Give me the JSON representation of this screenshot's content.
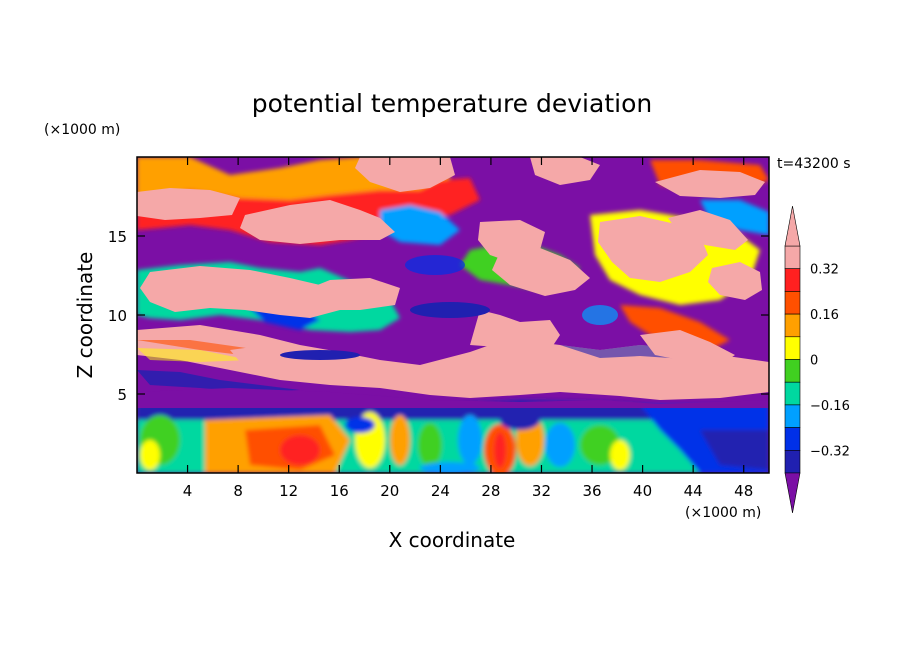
{
  "chart_data": {
    "type": "heatmap",
    "title": "potential temperature deviation",
    "xlabel": "X coordinate",
    "ylabel": "Z coordinate",
    "x_unit_label": "(×1000 m)",
    "y_unit_label": "(×1000 m)",
    "time_label": "t=43200 s",
    "xlim": [
      0,
      50
    ],
    "ylim": [
      0,
      20
    ],
    "x_ticks": [
      4,
      8,
      12,
      16,
      20,
      24,
      28,
      32,
      36,
      40,
      44,
      48
    ],
    "x_tick_labels": [
      "4",
      "8",
      "12",
      "16",
      "20",
      "24",
      "28",
      "32",
      "36",
      "40",
      "44",
      "48"
    ],
    "y_ticks": [
      5,
      10,
      15
    ],
    "y_tick_labels": [
      "5",
      "10",
      "15"
    ],
    "colorbar": {
      "levels": [
        -0.4,
        -0.32,
        -0.24,
        -0.16,
        -0.08,
        0,
        0.08,
        0.16,
        0.24,
        0.32,
        0.4
      ],
      "tick_values": [
        -0.32,
        -0.16,
        0,
        0.16,
        0.32
      ],
      "tick_labels": [
        "−0.32",
        "−0.16",
        "0",
        "0.16",
        "0.32"
      ],
      "colors": [
        "#7b0fa5",
        "#2020b0",
        "#0030e8",
        "#00a0ff",
        "#00d8a0",
        "#40d020",
        "#ffff00",
        "#ffa000",
        "#ff5000",
        "#ff2020",
        "#f5a8a8"
      ],
      "under_color": "#7b0fa5",
      "over_color": "#f5a8a8",
      "extend": "both"
    }
  }
}
